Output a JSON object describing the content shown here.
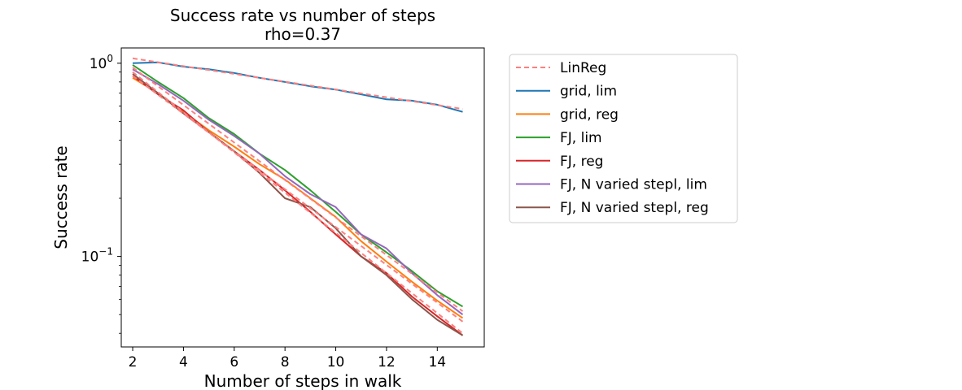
{
  "chart_data": {
    "type": "line",
    "title": "Success rate vs number of steps",
    "subtitle": "rho=0.37",
    "xlabel": "Number of steps in walk",
    "ylabel": "Success rate",
    "xlim": [
      1.55,
      15.85
    ],
    "ylim": [
      0.034,
      1.2
    ],
    "yscale": "log",
    "grid": false,
    "legend_position": "outside-right",
    "x_ticks": [
      2,
      4,
      6,
      8,
      10,
      12,
      14
    ],
    "x_tick_labels": [
      "2",
      "4",
      "6",
      "8",
      "10",
      "12",
      "14"
    ],
    "y_ticks": [
      0.1,
      1.0
    ],
    "y_tick_labels": [
      {
        "base": "10",
        "exp": "−1"
      },
      {
        "base": "10",
        "exp": "0"
      }
    ],
    "x": [
      2,
      3,
      4,
      5,
      6,
      7,
      8,
      9,
      10,
      11,
      12,
      13,
      14,
      15
    ],
    "series": [
      {
        "name": "grid, lim",
        "color": "#1f77b4",
        "style": "solid",
        "values": [
          1.0,
          1.01,
          0.96,
          0.93,
          0.89,
          0.84,
          0.8,
          0.76,
          0.73,
          0.69,
          0.65,
          0.64,
          0.61,
          0.56
        ]
      },
      {
        "name": "grid, reg",
        "color": "#ff7f0e",
        "style": "solid",
        "values": [
          0.84,
          0.7,
          0.56,
          0.45,
          0.37,
          0.3,
          0.25,
          0.2,
          0.16,
          0.12,
          0.094,
          0.074,
          0.059,
          0.048
        ]
      },
      {
        "name": "FJ, lim",
        "color": "#2ca02c",
        "style": "solid",
        "values": [
          0.98,
          0.8,
          0.66,
          0.52,
          0.43,
          0.34,
          0.28,
          0.22,
          0.17,
          0.13,
          0.105,
          0.084,
          0.066,
          0.055
        ]
      },
      {
        "name": "FJ, reg",
        "color": "#d62728",
        "style": "solid",
        "values": [
          0.86,
          0.69,
          0.57,
          0.44,
          0.35,
          0.28,
          0.22,
          0.17,
          0.13,
          0.1,
          0.082,
          0.062,
          0.049,
          0.039
        ]
      },
      {
        "name": "FJ, N varied stepl, lim",
        "color": "#9467bd",
        "style": "solid",
        "values": [
          0.93,
          0.78,
          0.64,
          0.51,
          0.42,
          0.34,
          0.26,
          0.21,
          0.18,
          0.13,
          0.11,
          0.082,
          0.063,
          0.05
        ]
      },
      {
        "name": "FJ, N varied stepl, reg",
        "color": "#8c564b",
        "style": "solid",
        "values": [
          0.88,
          0.7,
          0.55,
          0.44,
          0.35,
          0.27,
          0.2,
          0.18,
          0.14,
          0.1,
          0.08,
          0.06,
          0.047,
          0.039
        ]
      }
    ],
    "regressions": [
      {
        "name": "LinReg",
        "color": "#ff7f7f",
        "style": "dashed",
        "x": [
          2,
          15
        ],
        "y": [
          1.06,
          0.58
        ]
      },
      {
        "color": "#ff7f7f",
        "style": "dashed",
        "x": [
          2,
          15
        ],
        "y": [
          0.86,
          0.046
        ]
      },
      {
        "color": "#ff7f7f",
        "style": "dashed",
        "x": [
          2,
          15
        ],
        "y": [
          0.95,
          0.052
        ]
      },
      {
        "color": "#ff7f7f",
        "style": "dashed",
        "x": [
          2,
          15
        ],
        "y": [
          0.9,
          0.04
        ]
      }
    ],
    "legend": [
      {
        "label": "LinReg",
        "color": "#ff7f7f",
        "style": "dashed"
      },
      {
        "label": "grid, lim",
        "color": "#1f77b4",
        "style": "solid"
      },
      {
        "label": "grid, reg",
        "color": "#ff7f0e",
        "style": "solid"
      },
      {
        "label": "FJ, lim",
        "color": "#2ca02c",
        "style": "solid"
      },
      {
        "label": "FJ, reg",
        "color": "#d62728",
        "style": "solid"
      },
      {
        "label": "FJ, N varied stepl, lim",
        "color": "#9467bd",
        "style": "solid"
      },
      {
        "label": "FJ, N varied stepl, reg",
        "color": "#8c564b",
        "style": "solid"
      }
    ]
  }
}
